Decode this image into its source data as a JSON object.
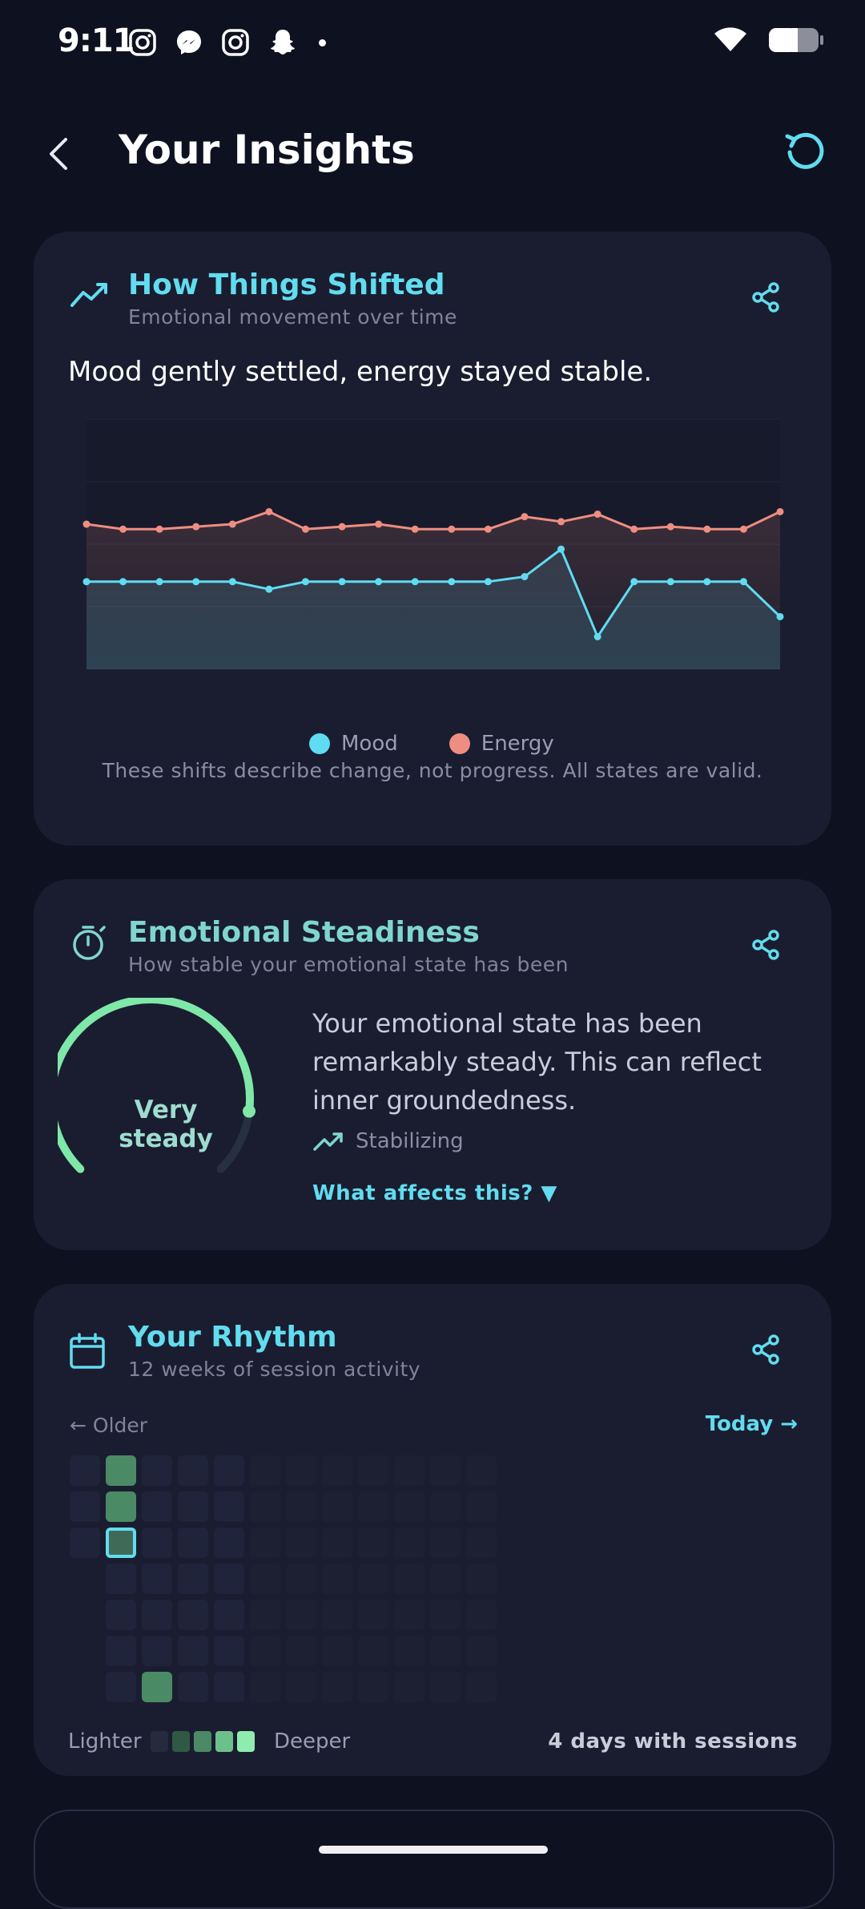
{
  "status_bar": {
    "time": "9:11"
  },
  "header": {
    "title": "Your Insights",
    "back_icon": "chevron-left-icon",
    "refresh_icon": "refresh-icon"
  },
  "colors": {
    "accent": "#62dcef",
    "mood": "#5fdcf2",
    "energy": "#ee8e80",
    "steady": "#7fe8a8",
    "card": "#1a1d30",
    "background": "#0e1120"
  },
  "shifts_card": {
    "title": "How Things Shifted",
    "subtitle": "Emotional movement over time",
    "headline": "Mood gently settled, energy stayed stable.",
    "footnote": "These shifts describe change, not progress. All states are valid."
  },
  "chart_data": {
    "type": "area",
    "series": [
      {
        "name": "Mood",
        "color": "#5fdcf2",
        "values": [
          0.35,
          0.35,
          0.35,
          0.35,
          0.35,
          0.32,
          0.35,
          0.35,
          0.35,
          0.35,
          0.35,
          0.35,
          0.37,
          0.48,
          0.13,
          0.35,
          0.35,
          0.35,
          0.35,
          0.21
        ]
      },
      {
        "name": "Energy",
        "color": "#ee8e80",
        "values": [
          0.58,
          0.56,
          0.56,
          0.57,
          0.58,
          0.63,
          0.56,
          0.57,
          0.58,
          0.56,
          0.56,
          0.56,
          0.61,
          0.59,
          0.62,
          0.56,
          0.57,
          0.56,
          0.56,
          0.63
        ]
      }
    ],
    "ylim": [
      0,
      1
    ],
    "grid": true,
    "legend": "bottom-center"
  },
  "steadiness_card": {
    "title": "Emotional Steadiness",
    "subtitle": "How stable your emotional state has been",
    "gauge_label": "Very steady",
    "gauge_level": 0.86,
    "description": "Your emotional state has been remarkably steady. This can reflect inner groundedness.",
    "trend": "Stabilizing",
    "link": "What affects this? ▼"
  },
  "rhythm_card": {
    "title": "Your Rhythm",
    "subtitle": "12 weeks of session activity",
    "older": "← Older",
    "today": "Today →",
    "legend_low": "Lighter",
    "legend_high": "Deeper",
    "summary": "4 days with sessions",
    "weeks": 12,
    "active_days": [
      {
        "week": 1,
        "day": 0,
        "level": 2
      },
      {
        "week": 1,
        "day": 1,
        "level": 2
      },
      {
        "week": 1,
        "day": 2,
        "level": 2,
        "today": true
      },
      {
        "week": 2,
        "day": 6,
        "level": 2
      }
    ],
    "empty_days": [
      {
        "week": 0,
        "day": 3
      },
      {
        "week": 0,
        "day": 4
      },
      {
        "week": 0,
        "day": 5
      },
      {
        "week": 0,
        "day": 6
      }
    ]
  }
}
